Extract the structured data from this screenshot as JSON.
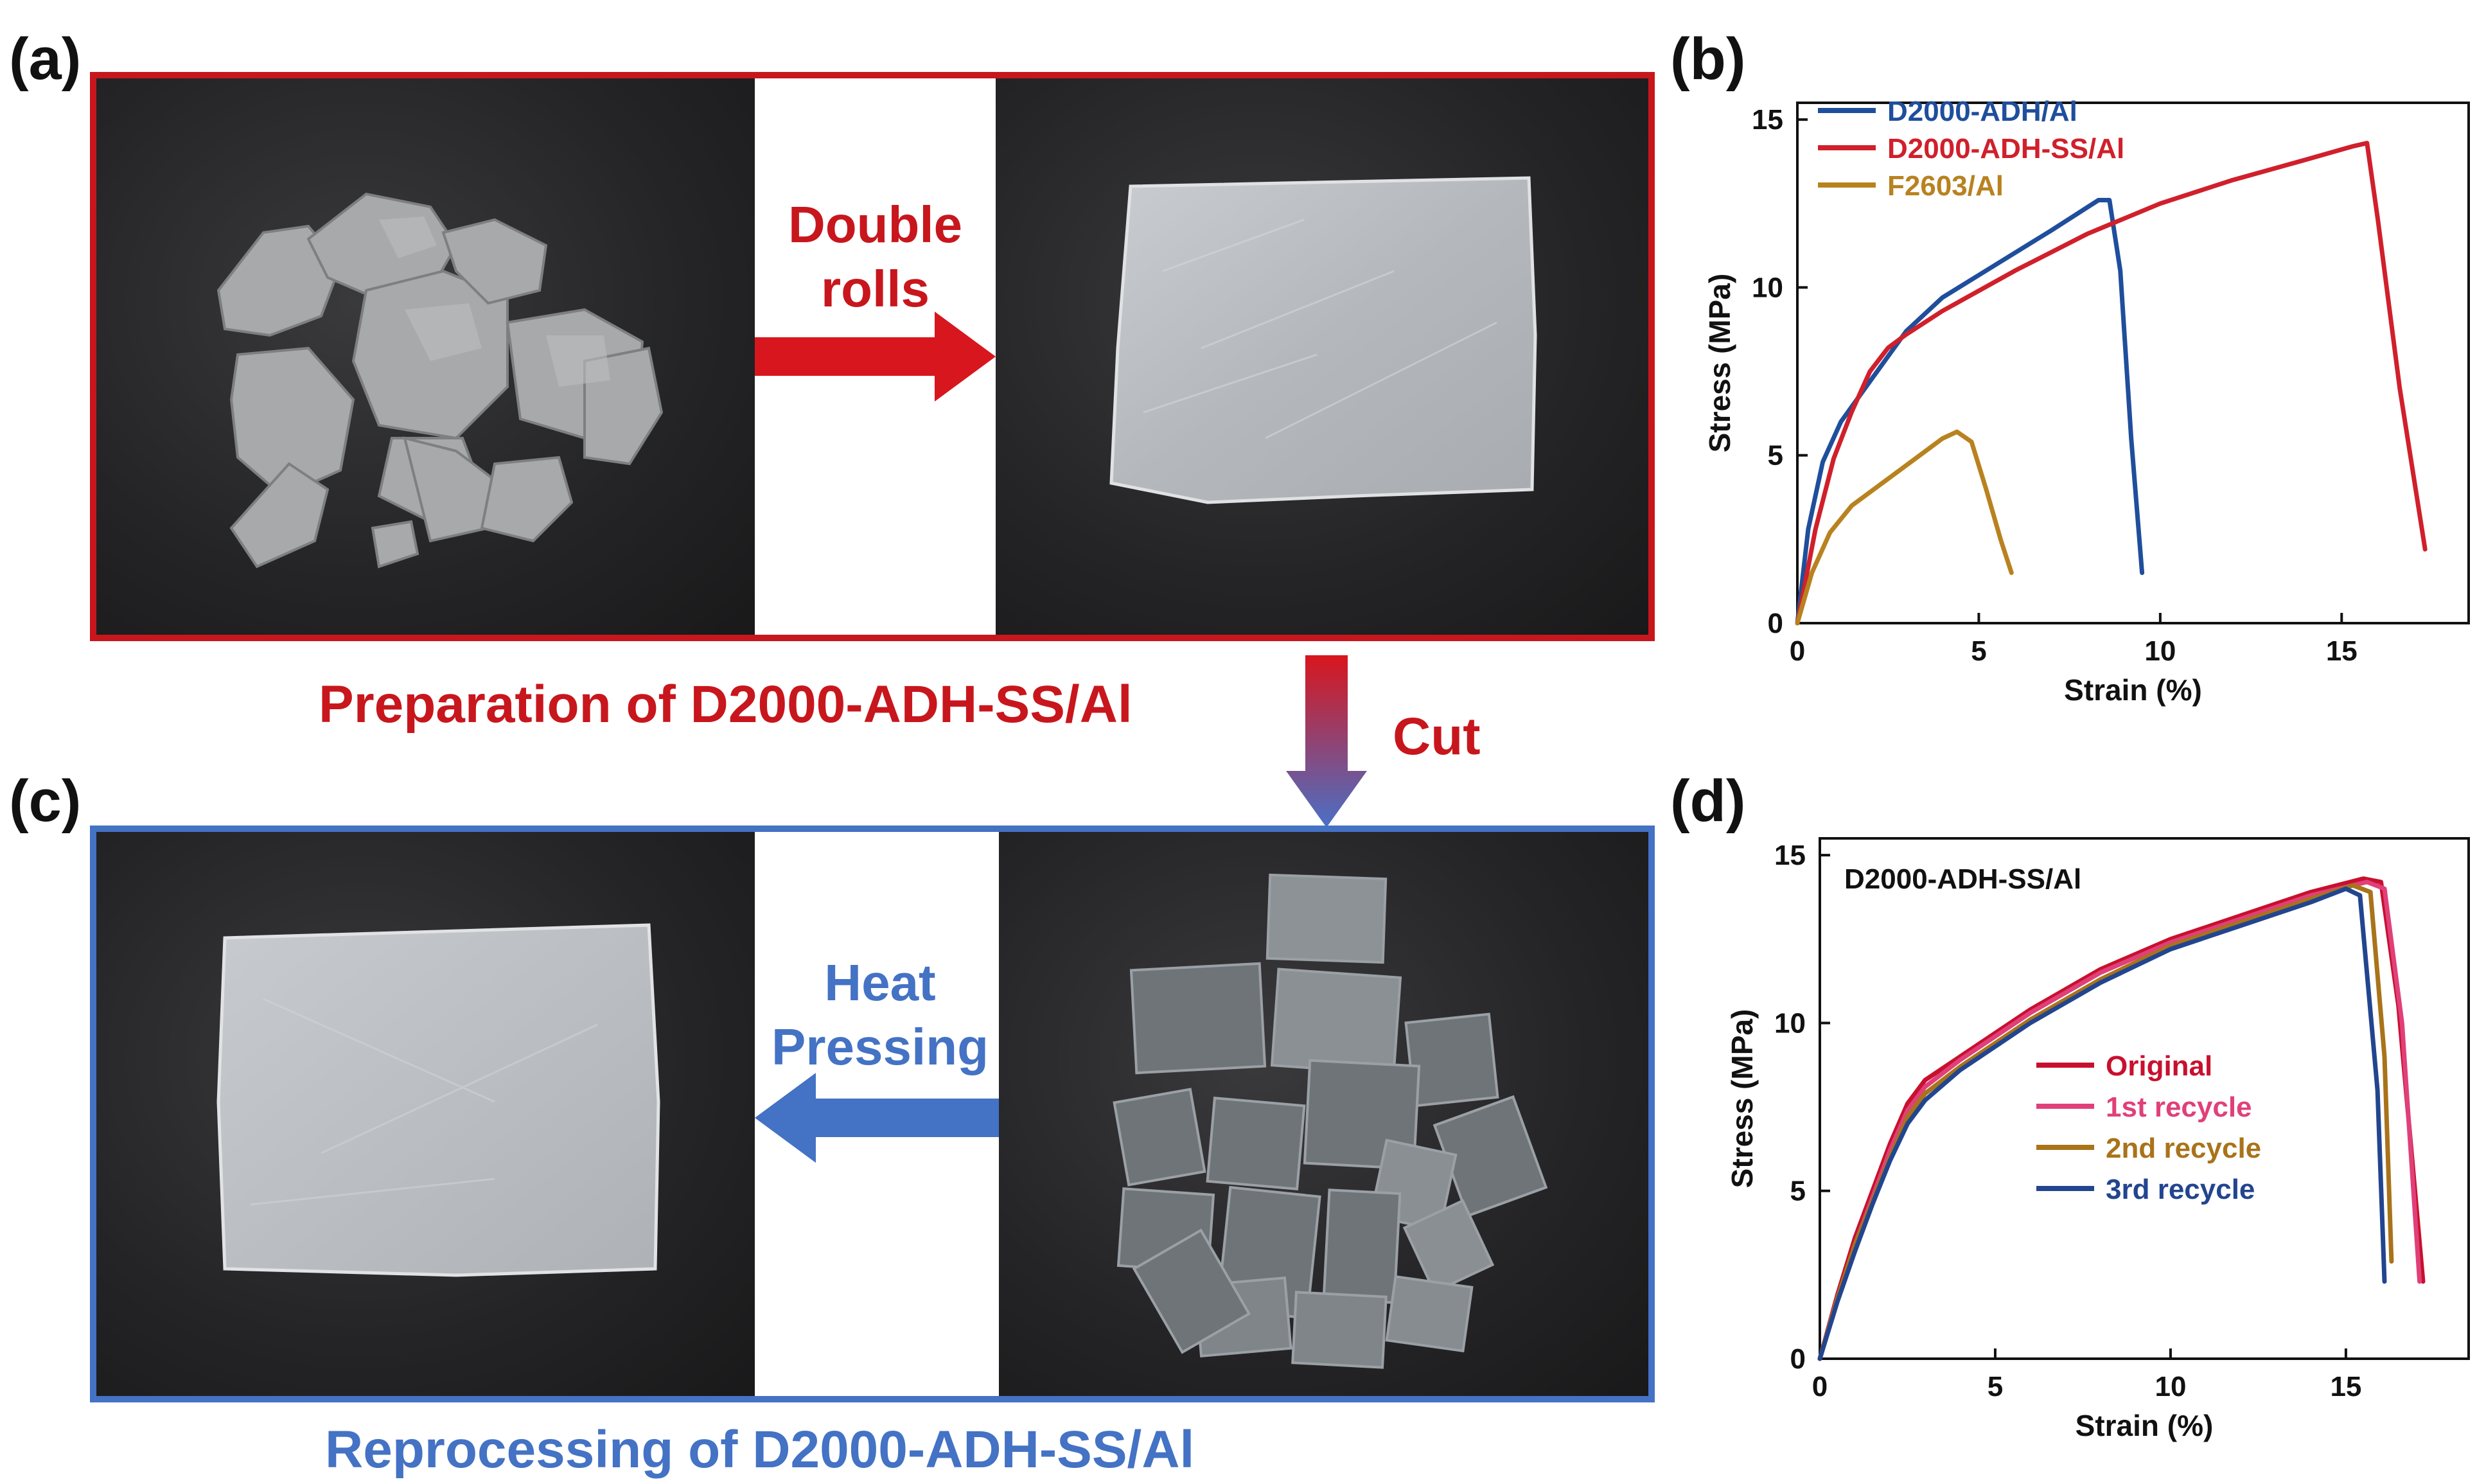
{
  "panels": {
    "a": "(a)",
    "b": "(b)",
    "c": "(c)",
    "d": "(d)"
  },
  "process": {
    "step1": [
      "Double",
      "rolls"
    ],
    "caption_a": "Preparation of D2000-ADH-SS/Al",
    "cut": "Cut",
    "step2": [
      "Heat",
      "Pressing"
    ],
    "caption_c": "Reprocessing of D2000-ADH-SS/Al"
  },
  "colors": {
    "red": "#c8161d",
    "blue": "#4472c4",
    "chart_blue": "#1f4e9c",
    "chart_red": "#d0202b",
    "chart_brown": "#b8821f",
    "chart_pink": "#e0407a",
    "chart_dark_red": "#c8102e",
    "chart_gold": "#a9731a",
    "chart_navy": "#22458f"
  },
  "chart_data": [
    {
      "type": "line",
      "panel": "(b)",
      "xlabel": "Strain (%)",
      "ylabel": "Stress (MPa)",
      "xlim": [
        0,
        18.5
      ],
      "ylim": [
        0,
        15.5
      ],
      "xticks": [
        0,
        5,
        10,
        15
      ],
      "yticks": [
        0,
        5,
        10,
        15
      ],
      "legend_position": "top-left",
      "series": [
        {
          "name": "D2000-ADH/Al",
          "color": "#1f4e9c",
          "points": [
            [
              0,
              0
            ],
            [
              0.3,
              2.8
            ],
            [
              0.7,
              4.8
            ],
            [
              1.2,
              6.0
            ],
            [
              2,
              7.2
            ],
            [
              3,
              8.7
            ],
            [
              4,
              9.7
            ],
            [
              5.5,
              10.7
            ],
            [
              7,
              11.7
            ],
            [
              8.3,
              12.6
            ],
            [
              8.6,
              12.6
            ],
            [
              8.9,
              10.5
            ],
            [
              9.2,
              5.5
            ],
            [
              9.5,
              1.5
            ]
          ]
        },
        {
          "name": "D2000-ADH-SS/Al",
          "color": "#d0202b",
          "points": [
            [
              0,
              0
            ],
            [
              0.5,
              2.8
            ],
            [
              1,
              4.9
            ],
            [
              1.5,
              6.3
            ],
            [
              2,
              7.5
            ],
            [
              2.5,
              8.2
            ],
            [
              3,
              8.6
            ],
            [
              4,
              9.3
            ],
            [
              6,
              10.5
            ],
            [
              8,
              11.6
            ],
            [
              10,
              12.5
            ],
            [
              12,
              13.2
            ],
            [
              14,
              13.8
            ],
            [
              15.3,
              14.2
            ],
            [
              15.7,
              14.3
            ],
            [
              16,
              12.0
            ],
            [
              16.6,
              7.0
            ],
            [
              17.3,
              2.2
            ]
          ]
        },
        {
          "name": "F2603/Al",
          "color": "#b8821f",
          "points": [
            [
              0,
              0
            ],
            [
              0.4,
              1.5
            ],
            [
              0.9,
              2.7
            ],
            [
              1.5,
              3.5
            ],
            [
              2.5,
              4.3
            ],
            [
              3.5,
              5.1
            ],
            [
              4,
              5.5
            ],
            [
              4.4,
              5.7
            ],
            [
              4.8,
              5.4
            ],
            [
              5.2,
              4.0
            ],
            [
              5.6,
              2.5
            ],
            [
              5.9,
              1.5
            ]
          ]
        }
      ]
    },
    {
      "type": "line",
      "panel": "(d)",
      "title": "D2000-ADH-SS/Al",
      "xlabel": "Strain (%)",
      "ylabel": "Stress (MPa)",
      "xlim": [
        0,
        18.5
      ],
      "ylim": [
        0,
        15.5
      ],
      "xticks": [
        0,
        5,
        10,
        15
      ],
      "yticks": [
        0,
        5,
        10,
        15
      ],
      "legend_position": "center-right",
      "series": [
        {
          "name": "Original",
          "color": "#c8102e",
          "points": [
            [
              0,
              0
            ],
            [
              0.5,
              1.9
            ],
            [
              1,
              3.6
            ],
            [
              1.5,
              5.0
            ],
            [
              2,
              6.4
            ],
            [
              2.5,
              7.6
            ],
            [
              3,
              8.3
            ],
            [
              4,
              9.0
            ],
            [
              6,
              10.4
            ],
            [
              8,
              11.6
            ],
            [
              10,
              12.5
            ],
            [
              12,
              13.2
            ],
            [
              14,
              13.9
            ],
            [
              15.5,
              14.3
            ],
            [
              16,
              14.2
            ],
            [
              16.5,
              10.5
            ],
            [
              17.2,
              2.3
            ]
          ]
        },
        {
          "name": "1st recycle",
          "color": "#e0407a",
          "points": [
            [
              0,
              0
            ],
            [
              0.5,
              1.8
            ],
            [
              1,
              3.4
            ],
            [
              1.5,
              4.8
            ],
            [
              2,
              6.2
            ],
            [
              2.5,
              7.4
            ],
            [
              3,
              8.1
            ],
            [
              4,
              8.9
            ],
            [
              6,
              10.3
            ],
            [
              8,
              11.5
            ],
            [
              10,
              12.4
            ],
            [
              12,
              13.1
            ],
            [
              14,
              13.8
            ],
            [
              15.6,
              14.2
            ],
            [
              16.1,
              14.0
            ],
            [
              16.6,
              10.0
            ],
            [
              17.1,
              2.3
            ]
          ]
        },
        {
          "name": "2nd recycle",
          "color": "#a9731a",
          "points": [
            [
              0,
              0
            ],
            [
              0.5,
              1.8
            ],
            [
              1,
              3.4
            ],
            [
              1.5,
              4.7
            ],
            [
              2,
              6.0
            ],
            [
              2.5,
              7.2
            ],
            [
              3,
              7.9
            ],
            [
              4,
              8.7
            ],
            [
              6,
              10.1
            ],
            [
              8,
              11.3
            ],
            [
              10,
              12.3
            ],
            [
              12,
              13.0
            ],
            [
              14,
              13.7
            ],
            [
              15.2,
              14.1
            ],
            [
              15.7,
              13.9
            ],
            [
              16.1,
              9.0
            ],
            [
              16.3,
              2.9
            ]
          ]
        },
        {
          "name": "3rd recycle",
          "color": "#22458f",
          "points": [
            [
              0,
              0
            ],
            [
              0.5,
              1.7
            ],
            [
              1,
              3.2
            ],
            [
              1.5,
              4.6
            ],
            [
              2,
              5.9
            ],
            [
              2.5,
              7.0
            ],
            [
              3,
              7.7
            ],
            [
              4,
              8.6
            ],
            [
              6,
              10.0
            ],
            [
              8,
              11.2
            ],
            [
              10,
              12.2
            ],
            [
              12,
              12.9
            ],
            [
              14,
              13.6
            ],
            [
              15,
              14.0
            ],
            [
              15.4,
              13.8
            ],
            [
              15.9,
              8.0
            ],
            [
              16.1,
              2.3
            ]
          ]
        }
      ]
    }
  ]
}
